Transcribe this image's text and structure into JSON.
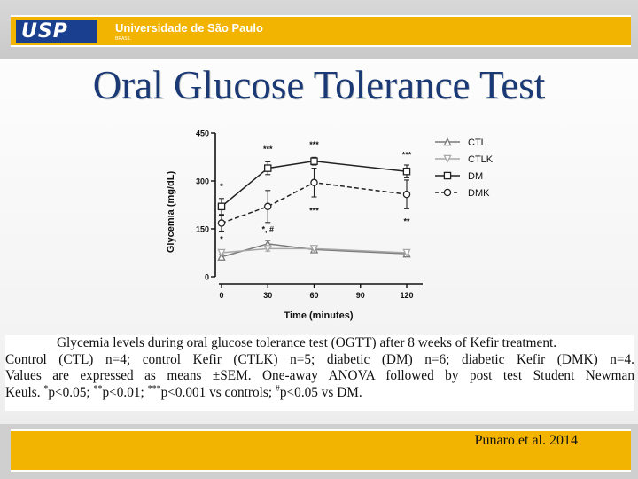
{
  "header": {
    "logo_text": "USP",
    "university_name": "Universidade de São Paulo",
    "university_sub": "BRASIL"
  },
  "slide": {
    "title": "Oral Glucose Tolerance Test",
    "citation": "Punaro et al. 2014"
  },
  "caption": {
    "line1": "Glycemia levels during oral glucose tolerance test (OGTT) after 8 weeks of Kefir treatment.",
    "line2": "Control (CTL) n=4; control Kefir (CTLK) n=5; diabetic (DM) n=6; diabetic Kefir (DMK) n=4.",
    "line3": "Values are expressed as means ±SEM. One-away ANOVA followed by post test Student Newman",
    "line4_start": "Keuls. ",
    "sym1": "*",
    "p1": "p<0.05; ",
    "sym2": "**",
    "p2": "p<0.01; ",
    "sym3": "***",
    "p3": "p<0.001 vs controls; ",
    "sym4": "#",
    "p4": "p<0.05 vs DM."
  },
  "chart_data": {
    "type": "line",
    "xlabel": "Time (minutes)",
    "ylabel": "Glycemia (mg/dL)",
    "x": [
      0,
      30,
      60,
      90,
      120
    ],
    "x_ticks": [
      0,
      30,
      60,
      90,
      120
    ],
    "y_ticks": [
      0,
      150,
      300,
      450
    ],
    "xlim": [
      0,
      120
    ],
    "ylim": [
      0,
      450
    ],
    "legend_position": "top-right",
    "series": [
      {
        "name": "CTL",
        "marker": "triangle-up",
        "color": "#7a7a7a",
        "dash": "solid",
        "x": [
          0,
          30,
          60,
          120
        ],
        "values": [
          62,
          103,
          85,
          72
        ],
        "err": [
          8,
          10,
          6,
          5
        ]
      },
      {
        "name": "CTLK",
        "marker": "triangle-down",
        "color": "#a8a8a8",
        "dash": "solid",
        "x": [
          0,
          30,
          60,
          120
        ],
        "values": [
          75,
          88,
          88,
          75
        ],
        "err": [
          6,
          8,
          6,
          5
        ]
      },
      {
        "name": "DM",
        "marker": "square",
        "color": "#222222",
        "dash": "solid",
        "x": [
          0,
          30,
          60,
          120
        ],
        "values": [
          220,
          340,
          362,
          330
        ],
        "err": [
          25,
          20,
          12,
          20
        ]
      },
      {
        "name": "DMK",
        "marker": "circle",
        "color": "#222222",
        "dash": "dashed",
        "x": [
          0,
          30,
          60,
          120
        ],
        "values": [
          168,
          220,
          295,
          258
        ],
        "err": [
          25,
          50,
          45,
          45
        ]
      }
    ],
    "annotations": [
      {
        "x": 0,
        "y": 275,
        "text": "*"
      },
      {
        "x": 0,
        "y": 110,
        "text": "*"
      },
      {
        "x": 30,
        "y": 392,
        "text": "***"
      },
      {
        "x": 30,
        "y": 140,
        "text": "*, #"
      },
      {
        "x": 60,
        "y": 405,
        "text": "***"
      },
      {
        "x": 60,
        "y": 198,
        "text": "***"
      },
      {
        "x": 120,
        "y": 373,
        "text": "***"
      },
      {
        "x": 120,
        "y": 165,
        "text": "**"
      }
    ]
  }
}
